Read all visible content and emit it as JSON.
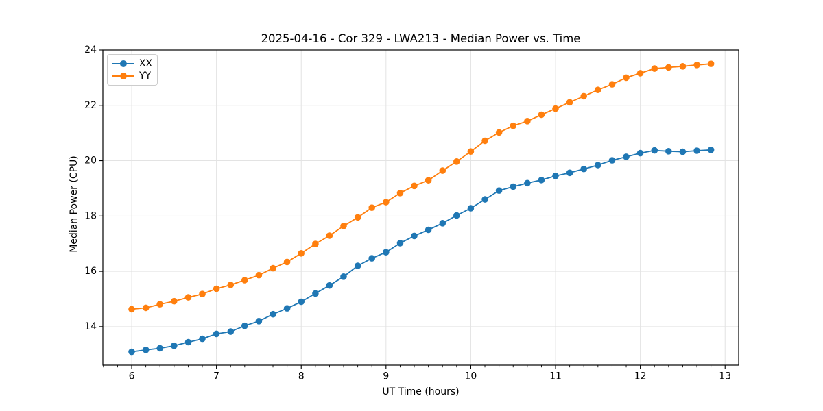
{
  "chart_data": {
    "type": "line",
    "title": "2025-04-16 - Cor 329 - LWA213 - Median Power vs. Time",
    "xlabel": "UT Time (hours)",
    "ylabel": "Median Power (CPU)",
    "xlim": [
      5.66,
      13.16
    ],
    "ylim": [
      12.61,
      24.0
    ],
    "xticks": [
      6,
      7,
      8,
      9,
      10,
      11,
      12,
      13
    ],
    "yticks": [
      14,
      16,
      18,
      20,
      22,
      24
    ],
    "x_minor_step": 0.166667,
    "grid": true,
    "legend_position": "upper left",
    "x": [
      6.0,
      6.167,
      6.333,
      6.5,
      6.667,
      6.833,
      7.0,
      7.167,
      7.333,
      7.5,
      7.667,
      7.833,
      8.0,
      8.167,
      8.333,
      8.5,
      8.667,
      8.833,
      9.0,
      9.167,
      9.333,
      9.5,
      9.667,
      9.833,
      10.0,
      10.167,
      10.333,
      10.5,
      10.667,
      10.833,
      11.0,
      11.167,
      11.333,
      11.5,
      11.667,
      11.833,
      12.0,
      12.167,
      12.333,
      12.5,
      12.667,
      12.833
    ],
    "series": [
      {
        "name": "XX",
        "color": "#1f77b4",
        "values": [
          13.09,
          13.16,
          13.22,
          13.31,
          13.44,
          13.56,
          13.74,
          13.82,
          14.03,
          14.2,
          14.45,
          14.66,
          14.9,
          15.2,
          15.49,
          15.81,
          16.2,
          16.47,
          16.69,
          17.02,
          17.28,
          17.5,
          17.74,
          18.02,
          18.28,
          18.6,
          18.92,
          19.06,
          19.19,
          19.3,
          19.45,
          19.56,
          19.7,
          19.84,
          20.01,
          20.14,
          20.27,
          20.37,
          20.34,
          20.32,
          20.36,
          20.39
        ]
      },
      {
        "name": "YY",
        "color": "#ff7f0e",
        "values": [
          14.63,
          14.68,
          14.81,
          14.92,
          15.06,
          15.18,
          15.37,
          15.51,
          15.68,
          15.86,
          16.11,
          16.34,
          16.65,
          16.99,
          17.29,
          17.64,
          17.95,
          18.3,
          18.5,
          18.83,
          19.09,
          19.29,
          19.64,
          19.97,
          20.33,
          20.72,
          21.02,
          21.26,
          21.43,
          21.66,
          21.88,
          22.11,
          22.33,
          22.56,
          22.76,
          23.0,
          23.16,
          23.33,
          23.37,
          23.41,
          23.46,
          23.5
        ]
      }
    ],
    "style": {
      "spine_color": "#000000",
      "grid_color": "#e3e3e3",
      "tick_color": "#000000",
      "background": "#ffffff",
      "marker_radius": 4.8,
      "line_width": 1.8
    }
  }
}
